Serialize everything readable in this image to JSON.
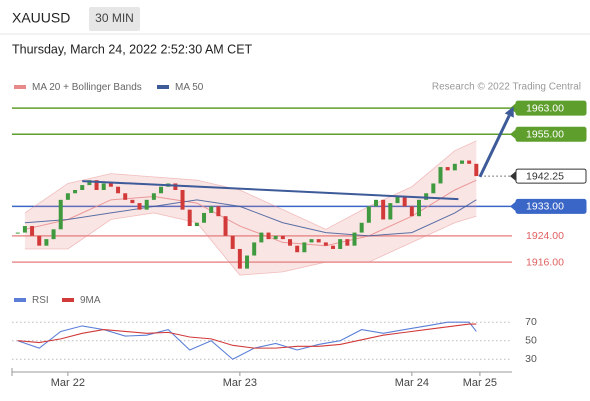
{
  "header": {
    "symbol": "XAUUSD",
    "timeframe": "30 MIN",
    "date": "Thursday, March 24, 2022 2:52:30 AM CET"
  },
  "chart_data": [
    {
      "type": "candlestick",
      "source": "Research © 2022 Trading Central",
      "x": [
        -7,
        -6,
        -5,
        -4,
        -3,
        -2,
        -1,
        0,
        1,
        2,
        3,
        4,
        5,
        6,
        7,
        8,
        9,
        10,
        11,
        12,
        13,
        14,
        15,
        16,
        17,
        18,
        19,
        20,
        21,
        22,
        23,
        24,
        25,
        26,
        27,
        28,
        29,
        30,
        31,
        32,
        33,
        34,
        35,
        36,
        37,
        38,
        39,
        40,
        41,
        42,
        43,
        44,
        45,
        46,
        47,
        48,
        49,
        50,
        51,
        52,
        53,
        54,
        55,
        56,
        57
      ],
      "values": [
        1925,
        1927,
        1924,
        1921,
        1923,
        1926,
        1935,
        1937,
        1938,
        1939.5,
        1941,
        1938,
        1940,
        1939,
        1937,
        1935,
        1934,
        1932,
        1935,
        1937,
        1939,
        1940,
        1938,
        1932,
        1927,
        1928,
        1931,
        1933,
        1930,
        1924,
        1920,
        1914,
        1918,
        1922,
        1925,
        1923,
        1924,
        1923,
        1921,
        1919,
        1922,
        1923,
        1922,
        1921,
        1920,
        1923,
        1921,
        1925,
        1928,
        1933,
        1935,
        1929,
        1934,
        1936,
        1933,
        1930,
        1935,
        1937,
        1940,
        1945,
        1944,
        1946,
        1947,
        1946,
        1942.25
      ],
      "up_color": "#3f9a3f",
      "down_color": "#d23a3a",
      "xlim": [
        -7.8,
        61.7
      ],
      "ylim": [
        1909,
        1967
      ],
      "series": [
        {
          "name": "MA 20 + Bollinger Bands",
          "color": "#e88a8a",
          "x": [
            -6,
            0,
            6,
            12,
            18,
            24,
            30,
            36,
            42,
            48,
            54,
            57
          ],
          "values": [
            1926,
            1929,
            1935,
            1936,
            1934,
            1927,
            1922,
            1921,
            1924,
            1930,
            1938,
            1941
          ],
          "upper": [
            1931,
            1940,
            1943,
            1942,
            1941,
            1938,
            1932,
            1926,
            1933,
            1939,
            1950,
            1953
          ],
          "lower": [
            1920,
            1920,
            1929,
            1931,
            1928,
            1912,
            1913,
            1916,
            1916,
            1922,
            1928,
            1930
          ]
        },
        {
          "name": "MA 50",
          "color": "#3d5a99",
          "x": [
            -6,
            0,
            6,
            12,
            18,
            24,
            30,
            36,
            42,
            48,
            54,
            57
          ],
          "values": [
            1928,
            1929,
            1931,
            1933,
            1935,
            1933,
            1928,
            1925,
            1924,
            1925,
            1931,
            1935
          ]
        }
      ],
      "levels": [
        {
          "value": 1963,
          "label": "1963.00",
          "color": "#5e9e2c",
          "style": "filled"
        },
        {
          "value": 1955,
          "label": "1955.00",
          "color": "#5e9e2c",
          "style": "filled"
        },
        {
          "value": 1942.25,
          "label": "1942.25",
          "color": "#333333",
          "style": "outlined"
        },
        {
          "value": 1933,
          "label": "1933.00",
          "color": "#3a66c8",
          "style": "filled"
        },
        {
          "value": 1924,
          "label": "1924.00",
          "color": "#e06060",
          "style": "text"
        },
        {
          "value": 1916,
          "label": "1916.00",
          "color": "#e06060",
          "style": "text"
        }
      ],
      "annotations": [
        {
          "type": "trendline",
          "x": [
            2,
            54.5
          ],
          "values": [
            1940.7,
            1935.2
          ],
          "color": "#3d5a99"
        },
        {
          "type": "arrow",
          "x": [
            57.5,
            62.2
          ],
          "values": [
            1942,
            1963.5
          ],
          "color": "#3d5a99"
        }
      ]
    },
    {
      "type": "line",
      "x": [
        -7,
        -4,
        -1,
        2,
        5,
        8,
        11,
        14,
        17,
        20,
        23,
        26,
        29,
        32,
        35,
        38,
        41,
        44,
        47,
        50,
        53,
        56,
        57
      ],
      "series": [
        {
          "name": "RSI",
          "color": "#5b7fd6",
          "values": [
            50,
            42,
            60,
            66,
            62,
            55,
            56,
            62,
            40,
            50,
            30,
            42,
            47,
            40,
            46,
            50,
            62,
            58,
            62,
            66,
            70,
            70,
            60
          ]
        },
        {
          "name": "9MA",
          "color": "#d23a3a",
          "values": [
            50,
            48,
            52,
            58,
            62,
            60,
            58,
            59,
            54,
            52,
            45,
            42,
            42,
            44,
            44,
            46,
            51,
            56,
            59,
            62,
            65,
            68,
            68
          ]
        }
      ],
      "xlim": [
        -7.8,
        61.7
      ],
      "ylim": [
        13,
        81
      ],
      "yticks": [
        70,
        50,
        30
      ],
      "xticks": [
        {
          "value": 0,
          "label": "Mar 22"
        },
        {
          "value": 24,
          "label": "Mar 23"
        },
        {
          "value": 48,
          "label": "Mar 24"
        },
        {
          "value": 57.5,
          "label": "Mar 25"
        }
      ],
      "grid": true
    }
  ]
}
